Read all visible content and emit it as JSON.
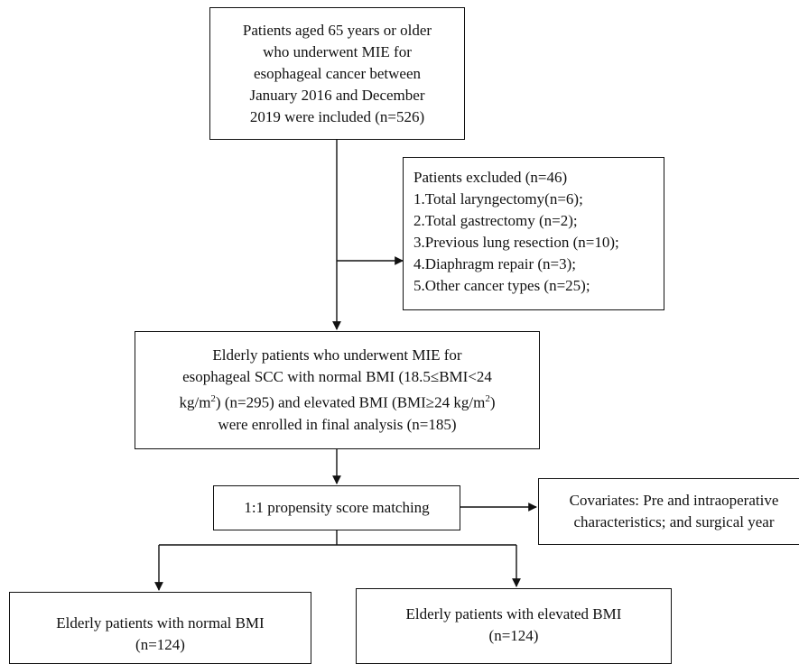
{
  "flowchart": {
    "inclusion": {
      "lines": [
        "Patients aged 65 years or older",
        "who underwent MIE for",
        "esophageal cancer between",
        "January 2016 and December",
        "2019 were included (n=526)"
      ]
    },
    "exclusion": {
      "title": "Patients excluded (n=46)",
      "items": [
        "1.Total laryngectomy(n=6);",
        "2.Total gastrectomy (n=2);",
        "3.Previous lung resection (n=10);",
        "4.Diaphragm repair (n=3);",
        "5.Other cancer types (n=25);"
      ]
    },
    "enrolled": {
      "line1": "Elderly patients who underwent MIE for",
      "line2": "esophageal SCC with normal BMI (18.5≤BMI<24",
      "line3_a": "kg/m",
      "line3_sup1": "2",
      "line3_b": ") (n=295) and elevated BMI (BMI≥24 kg/m",
      "line3_sup2": "2",
      "line3_c": ")",
      "line4": "were enrolled in final analysis (n=185)"
    },
    "matching": {
      "label": "1:1 propensity score matching"
    },
    "covariates": {
      "lines": [
        "Covariates: Pre and intraoperative",
        "characteristics; and surgical year"
      ]
    },
    "group_normal": {
      "lines": [
        "Elderly patients with normal BMI",
        "(n=124)"
      ]
    },
    "group_elevated": {
      "lines": [
        "Elderly patients with elevated BMI",
        "(n=124)"
      ]
    }
  }
}
